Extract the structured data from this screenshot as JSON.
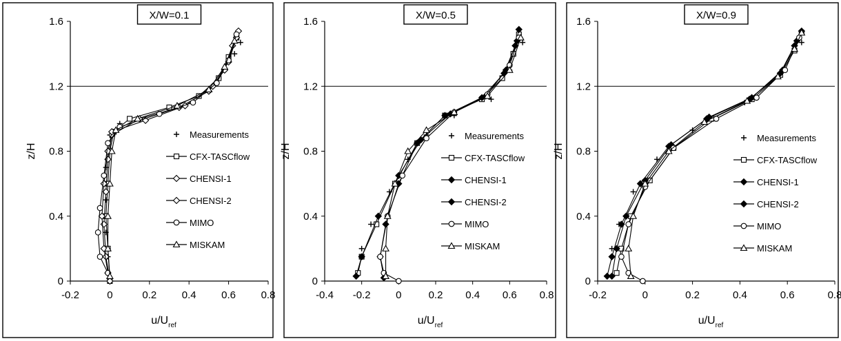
{
  "chart_data": [
    {
      "type": "line",
      "title": "X/W=0.1",
      "xlabel": "u/U",
      "xlabel_sub": "ref",
      "ylabel": "z/H",
      "xlim": [
        -0.2,
        0.8
      ],
      "ylim": [
        0,
        1.6
      ],
      "xticks": [
        "-0.2",
        "0",
        "0.2",
        "0.4",
        "0.6",
        "0.8"
      ],
      "xtick_values": [
        -0.2,
        0,
        0.2,
        0.4,
        0.6,
        0.8
      ],
      "yticks": [
        "0",
        "0.4",
        "0.8",
        "1.2",
        "1.6"
      ],
      "ytick_values": [
        0,
        0.4,
        0.8,
        1.2,
        1.6
      ],
      "ref_line_y": 1.2,
      "legend_position": "right",
      "series": [
        {
          "name": "Measurements",
          "marker": "plus",
          "line": false,
          "points": [
            [
              0,
              0.02
            ],
            [
              -0.01,
              0.15
            ],
            [
              -0.02,
              0.3
            ],
            [
              -0.02,
              0.5
            ],
            [
              -0.02,
              0.7
            ],
            [
              0.0,
              0.9
            ],
            [
              0.05,
              0.97
            ],
            [
              0.3,
              1.07
            ],
            [
              0.55,
              1.25
            ],
            [
              0.63,
              1.4
            ],
            [
              0.66,
              1.47
            ]
          ]
        },
        {
          "name": "CFX-TASCflow",
          "marker": "square",
          "line": true,
          "points": [
            [
              0,
              0
            ],
            [
              -0.01,
              0.2
            ],
            [
              -0.02,
              0.4
            ],
            [
              -0.01,
              0.6
            ],
            [
              0.0,
              0.8
            ],
            [
              0.02,
              0.92
            ],
            [
              0.1,
              1.0
            ],
            [
              0.3,
              1.07
            ],
            [
              0.45,
              1.14
            ],
            [
              0.55,
              1.25
            ],
            [
              0.6,
              1.38
            ],
            [
              0.64,
              1.5
            ]
          ]
        },
        {
          "name": "CHENSI-1",
          "marker": "diamond-open",
          "line": true,
          "points": [
            [
              0,
              0
            ],
            [
              -0.02,
              0.15
            ],
            [
              -0.03,
              0.35
            ],
            [
              -0.02,
              0.55
            ],
            [
              -0.01,
              0.75
            ],
            [
              0.01,
              0.9
            ],
            [
              0.15,
              1.0
            ],
            [
              0.35,
              1.07
            ],
            [
              0.5,
              1.17
            ],
            [
              0.58,
              1.3
            ],
            [
              0.62,
              1.45
            ],
            [
              0.65,
              1.54
            ]
          ]
        },
        {
          "name": "CHENSI-2",
          "marker": "diamond-open",
          "line": true,
          "points": [
            [
              -0.01,
              0.05
            ],
            [
              -0.03,
              0.2
            ],
            [
              -0.04,
              0.4
            ],
            [
              -0.03,
              0.6
            ],
            [
              -0.01,
              0.8
            ],
            [
              0.01,
              0.92
            ],
            [
              0.18,
              0.99
            ],
            [
              0.38,
              1.08
            ],
            [
              0.52,
              1.2
            ],
            [
              0.6,
              1.35
            ],
            [
              0.64,
              1.5
            ]
          ]
        },
        {
          "name": "MIMO",
          "marker": "circle",
          "line": true,
          "points": [
            [
              -0.01,
              0.05
            ],
            [
              -0.05,
              0.15
            ],
            [
              -0.06,
              0.3
            ],
            [
              -0.05,
              0.45
            ],
            [
              -0.03,
              0.65
            ],
            [
              -0.01,
              0.85
            ],
            [
              0.05,
              0.95
            ],
            [
              0.25,
              1.03
            ],
            [
              0.42,
              1.1
            ],
            [
              0.54,
              1.22
            ],
            [
              0.6,
              1.36
            ],
            [
              0.64,
              1.52
            ]
          ]
        },
        {
          "name": "MISKAM",
          "marker": "triangle",
          "line": true,
          "points": [
            [
              0,
              0.03
            ],
            [
              -0.01,
              0.2
            ],
            [
              -0.01,
              0.4
            ],
            [
              0.0,
              0.6
            ],
            [
              0.01,
              0.8
            ],
            [
              0.03,
              0.93
            ],
            [
              0.14,
              1.0
            ],
            [
              0.34,
              1.08
            ],
            [
              0.5,
              1.18
            ],
            [
              0.58,
              1.32
            ],
            [
              0.63,
              1.48
            ]
          ]
        }
      ]
    },
    {
      "type": "line",
      "title": "X/W=0.5",
      "xlabel": "u/U",
      "xlabel_sub": "ref",
      "ylabel": "z/H",
      "xlim": [
        -0.4,
        0.8
      ],
      "ylim": [
        0,
        1.6
      ],
      "xticks": [
        "-0.4",
        "-0.2",
        "0",
        "0.2",
        "0.4",
        "0.6",
        "0.8"
      ],
      "xtick_values": [
        -0.4,
        -0.2,
        0,
        0.2,
        0.4,
        0.6,
        0.8
      ],
      "yticks": [
        "0",
        "0.4",
        "0.8",
        "1.2",
        "1.6"
      ],
      "ytick_values": [
        0,
        0.4,
        0.8,
        1.2,
        1.6
      ],
      "ref_line_y": 1.2,
      "legend_position": "right",
      "series": [
        {
          "name": "Measurements",
          "marker": "plus",
          "line": false,
          "points": [
            [
              -0.2,
              0.2
            ],
            [
              -0.15,
              0.35
            ],
            [
              -0.05,
              0.55
            ],
            [
              0.05,
              0.75
            ],
            [
              0.15,
              0.9
            ],
            [
              0.3,
              1.02
            ],
            [
              0.5,
              1.12
            ],
            [
              0.6,
              1.3
            ],
            [
              0.67,
              1.47
            ]
          ]
        },
        {
          "name": "CFX-TASCflow",
          "marker": "square",
          "line": true,
          "points": [
            [
              -0.22,
              0.05
            ],
            [
              -0.2,
              0.15
            ],
            [
              -0.12,
              0.35
            ],
            [
              -0.02,
              0.6
            ],
            [
              0.1,
              0.85
            ],
            [
              0.25,
              1.02
            ],
            [
              0.45,
              1.12
            ],
            [
              0.56,
              1.25
            ],
            [
              0.62,
              1.4
            ],
            [
              0.65,
              1.52
            ]
          ]
        },
        {
          "name": "CHENSI-1",
          "marker": "diamond",
          "line": true,
          "points": [
            [
              -0.08,
              0.02
            ],
            [
              -0.1,
              0.15
            ],
            [
              -0.07,
              0.35
            ],
            [
              0.0,
              0.6
            ],
            [
              0.1,
              0.85
            ],
            [
              0.25,
              1.02
            ],
            [
              0.45,
              1.13
            ],
            [
              0.57,
              1.28
            ],
            [
              0.63,
              1.45
            ],
            [
              0.65,
              1.55
            ]
          ]
        },
        {
          "name": "CHENSI-2",
          "marker": "diamond",
          "line": true,
          "points": [
            [
              -0.23,
              0.03
            ],
            [
              -0.2,
              0.15
            ],
            [
              -0.11,
              0.4
            ],
            [
              0.0,
              0.65
            ],
            [
              0.12,
              0.87
            ],
            [
              0.28,
              1.03
            ],
            [
              0.47,
              1.14
            ],
            [
              0.58,
              1.3
            ],
            [
              0.64,
              1.48
            ]
          ]
        },
        {
          "name": "MIMO",
          "marker": "circle",
          "line": true,
          "points": [
            [
              0.0,
              0.0
            ],
            [
              -0.08,
              0.05
            ],
            [
              -0.1,
              0.15
            ],
            [
              -0.06,
              0.4
            ],
            [
              0.02,
              0.65
            ],
            [
              0.15,
              0.88
            ],
            [
              0.3,
              1.04
            ],
            [
              0.48,
              1.15
            ],
            [
              0.6,
              1.33
            ],
            [
              0.65,
              1.5
            ]
          ]
        },
        {
          "name": "MISKAM",
          "marker": "triangle",
          "line": true,
          "points": [
            [
              -0.07,
              0.03
            ],
            [
              -0.07,
              0.2
            ],
            [
              -0.06,
              0.4
            ],
            [
              -0.02,
              0.6
            ],
            [
              0.05,
              0.8
            ],
            [
              0.15,
              0.93
            ],
            [
              0.3,
              1.04
            ],
            [
              0.48,
              1.14
            ],
            [
              0.6,
              1.3
            ],
            [
              0.66,
              1.5
            ]
          ]
        }
      ]
    },
    {
      "type": "line",
      "title": "X/W=0.9",
      "xlabel": "u/U",
      "xlabel_sub": "ref",
      "ylabel": "z/H",
      "xlim": [
        -0.2,
        0.8
      ],
      "ylim": [
        0,
        1.6
      ],
      "xticks": [
        "-0.2",
        "0",
        "0.2",
        "0.4",
        "0.6",
        "0.8"
      ],
      "xtick_values": [
        -0.2,
        0,
        0.2,
        0.4,
        0.6,
        0.8
      ],
      "yticks": [
        "0",
        "0.4",
        "0.8",
        "1.2",
        "1.6"
      ],
      "ytick_values": [
        0,
        0.4,
        0.8,
        1.2,
        1.6
      ],
      "ref_line_y": 1.2,
      "legend_position": "right",
      "series": [
        {
          "name": "Measurements",
          "marker": "plus",
          "line": false,
          "points": [
            [
              -0.14,
              0.2
            ],
            [
              -0.11,
              0.35
            ],
            [
              -0.05,
              0.55
            ],
            [
              0.05,
              0.75
            ],
            [
              0.2,
              0.93
            ],
            [
              0.42,
              1.1
            ],
            [
              0.58,
              1.3
            ],
            [
              0.66,
              1.47
            ]
          ]
        },
        {
          "name": "CFX-TASCflow",
          "marker": "square",
          "line": true,
          "points": [
            [
              -0.12,
              0.05
            ],
            [
              -0.1,
              0.2
            ],
            [
              -0.06,
              0.4
            ],
            [
              0.02,
              0.62
            ],
            [
              0.12,
              0.82
            ],
            [
              0.28,
              1.0
            ],
            [
              0.45,
              1.12
            ],
            [
              0.57,
              1.27
            ],
            [
              0.63,
              1.42
            ],
            [
              0.66,
              1.53
            ]
          ]
        },
        {
          "name": "CHENSI-1",
          "marker": "diamond",
          "line": true,
          "points": [
            [
              -0.16,
              0.03
            ],
            [
              -0.14,
              0.15
            ],
            [
              -0.1,
              0.35
            ],
            [
              -0.02,
              0.6
            ],
            [
              0.1,
              0.83
            ],
            [
              0.26,
              1.0
            ],
            [
              0.44,
              1.12
            ],
            [
              0.57,
              1.28
            ],
            [
              0.63,
              1.45
            ],
            [
              0.66,
              1.54
            ]
          ]
        },
        {
          "name": "CHENSI-2",
          "marker": "diamond",
          "line": true,
          "points": [
            [
              -0.14,
              0.03
            ],
            [
              -0.12,
              0.2
            ],
            [
              -0.08,
              0.4
            ],
            [
              0.0,
              0.62
            ],
            [
              0.11,
              0.84
            ],
            [
              0.27,
              1.01
            ],
            [
              0.45,
              1.13
            ],
            [
              0.58,
              1.3
            ],
            [
              0.64,
              1.48
            ]
          ]
        },
        {
          "name": "MIMO",
          "marker": "circle",
          "line": true,
          "points": [
            [
              -0.01,
              0.0
            ],
            [
              -0.07,
              0.05
            ],
            [
              -0.1,
              0.15
            ],
            [
              -0.07,
              0.35
            ],
            [
              0.0,
              0.58
            ],
            [
              0.12,
              0.82
            ],
            [
              0.3,
              1.0
            ],
            [
              0.47,
              1.13
            ],
            [
              0.59,
              1.3
            ],
            [
              0.65,
              1.5
            ]
          ]
        },
        {
          "name": "MISKAM",
          "marker": "triangle",
          "line": true,
          "points": [
            [
              -0.06,
              0.03
            ],
            [
              -0.07,
              0.2
            ],
            [
              -0.05,
              0.4
            ],
            [
              0.0,
              0.6
            ],
            [
              0.1,
              0.8
            ],
            [
              0.25,
              0.98
            ],
            [
              0.43,
              1.11
            ],
            [
              0.56,
              1.26
            ],
            [
              0.63,
              1.43
            ],
            [
              0.66,
              1.53
            ]
          ]
        }
      ]
    }
  ]
}
